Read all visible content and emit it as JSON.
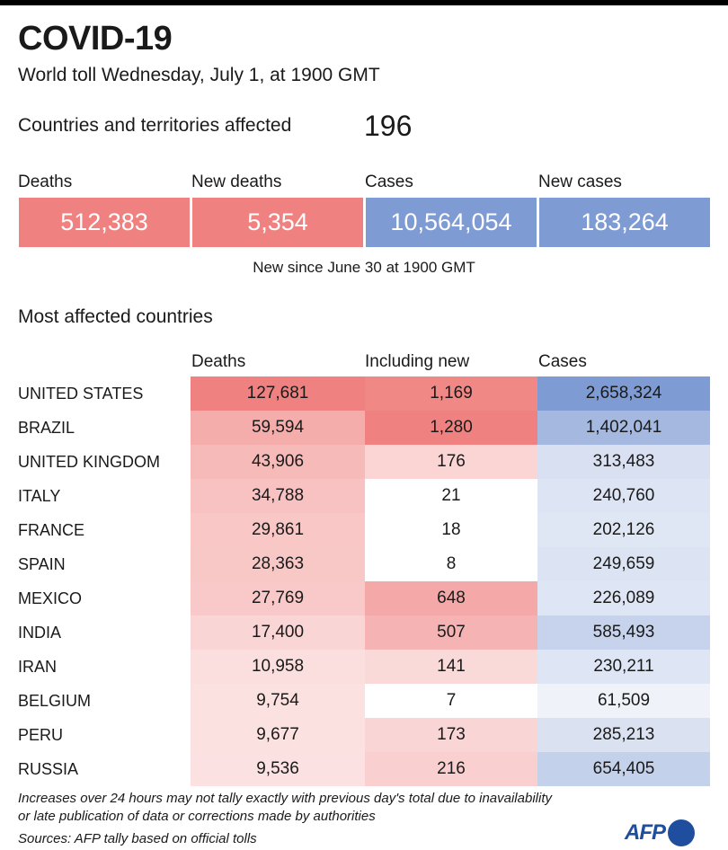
{
  "header": {
    "title": "COVID-19",
    "subtitle": "World toll Wednesday, July 1, at 1900 GMT",
    "affected_label": "Countries and territories affected",
    "affected_value": "196"
  },
  "summary": {
    "items": [
      {
        "label": "Deaths",
        "value": "512,383",
        "color": "#ef8280"
      },
      {
        "label": "New deaths",
        "value": "5,354",
        "color": "#ef8280"
      },
      {
        "label": "Cases",
        "value": "10,564,054",
        "color": "#7f9bd3"
      },
      {
        "label": "New cases",
        "value": "183,264",
        "color": "#7f9bd3"
      }
    ],
    "note": "New since  June 30 at 1900 GMT"
  },
  "chart_data": {
    "type": "table",
    "title": "Most affected countries",
    "columns": [
      "Deaths",
      "Including new",
      "Cases"
    ],
    "rows": [
      {
        "country": "UNITED STATES",
        "deaths": "127,681",
        "new": "1,169",
        "cases": "2,658,324"
      },
      {
        "country": "BRAZIL",
        "deaths": "59,594",
        "new": "1,280",
        "cases": "1,402,041"
      },
      {
        "country": "UNITED KINGDOM",
        "deaths": "43,906",
        "new": "176",
        "cases": "313,483"
      },
      {
        "country": "ITALY",
        "deaths": "34,788",
        "new": "21",
        "cases": "240,760"
      },
      {
        "country": "FRANCE",
        "deaths": "29,861",
        "new": "18",
        "cases": "202,126"
      },
      {
        "country": "SPAIN",
        "deaths": "28,363",
        "new": "8",
        "cases": "249,659"
      },
      {
        "country": "MEXICO",
        "deaths": "27,769",
        "new": "648",
        "cases": "226,089"
      },
      {
        "country": "INDIA",
        "deaths": "17,400",
        "new": "507",
        "cases": "585,493"
      },
      {
        "country": "IRAN",
        "deaths": "10,958",
        "new": "141",
        "cases": "230,211"
      },
      {
        "country": "BELGIUM",
        "deaths": "9,754",
        "new": "7",
        "cases": "61,509"
      },
      {
        "country": "PERU",
        "deaths": "9,677",
        "new": "173",
        "cases": "285,213"
      },
      {
        "country": "RUSSIA",
        "deaths": "9,536",
        "new": "216",
        "cases": "654,405"
      }
    ],
    "colors": {
      "deaths": "#ef8280",
      "cases": "#7f9bd3"
    }
  },
  "footer": {
    "note_line1": "Increases over 24 hours may not tally exactly with previous day's total due to inavailability",
    "note_line2": "or late publication of data or corrections made by authorities",
    "sources": "Sources: AFP tally based on official tolls",
    "logo": "AFP"
  }
}
